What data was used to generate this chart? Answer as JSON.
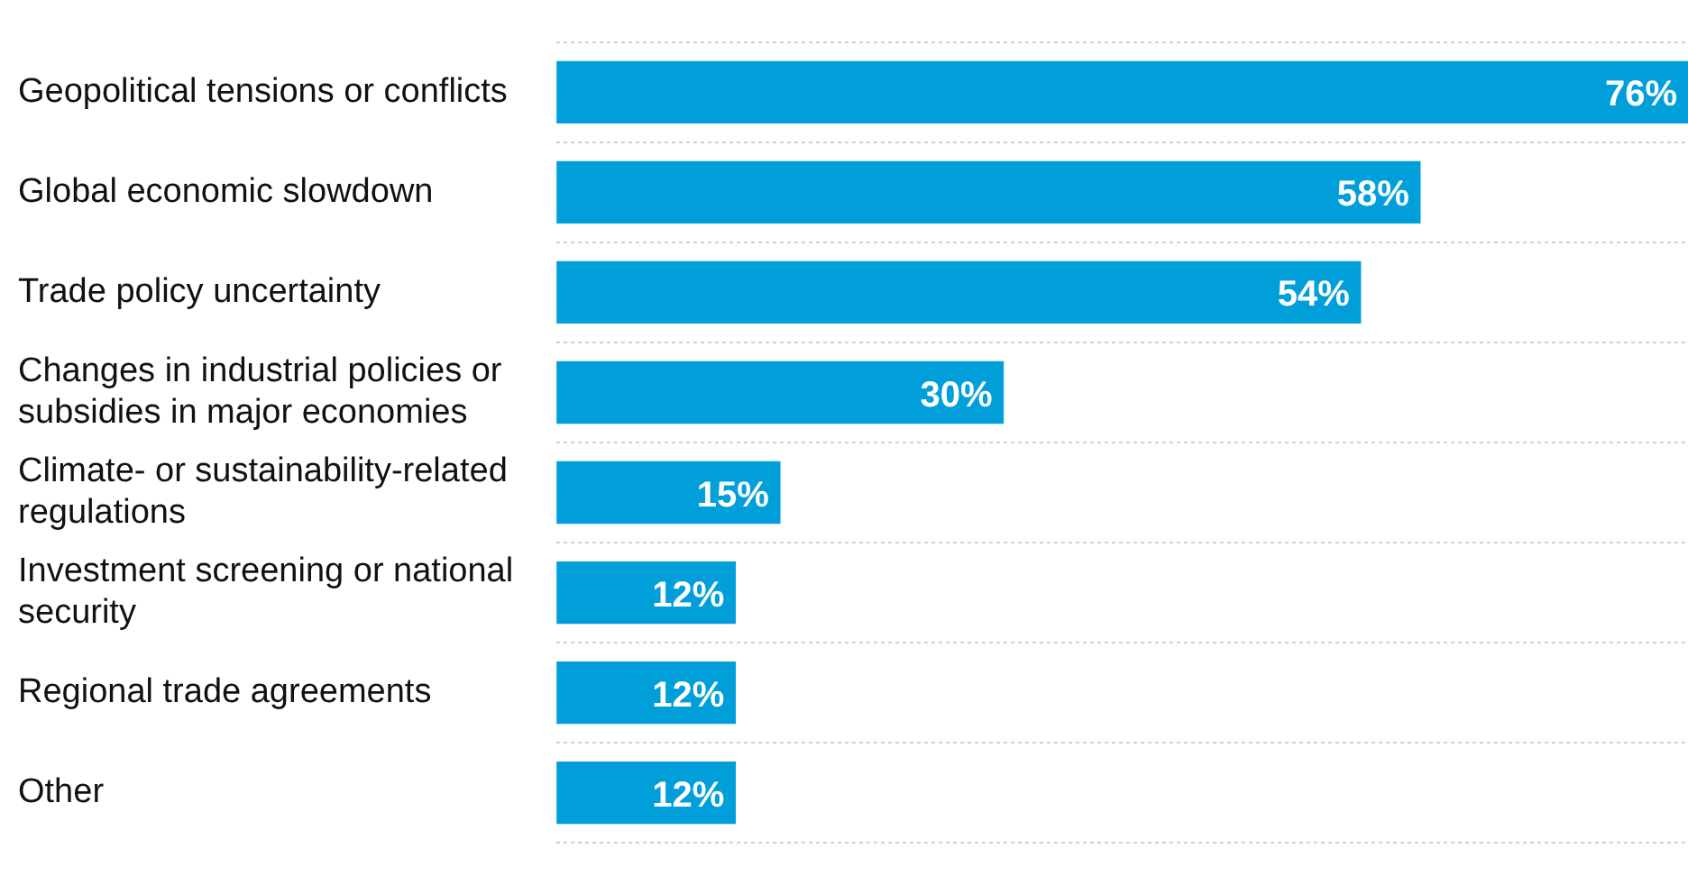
{
  "chart_data": {
    "type": "bar",
    "orientation": "horizontal",
    "data_labels": true,
    "grid": "y",
    "legend": false,
    "categories": [
      "Geopolitical tensions or conflicts",
      "Global economic slowdown",
      "Trade policy uncertainty",
      "Changes in industrial policies or subsidies in major economies",
      "Climate- or sustainability-related regulations",
      "Investment screening or national security",
      "Regional trade agreements",
      "Other"
    ],
    "values": [
      76,
      58,
      54,
      30,
      15,
      12,
      12,
      12
    ],
    "value_labels": [
      "76%",
      "58%",
      "54%",
      "30%",
      "15%",
      "12%",
      "12%",
      "12%"
    ],
    "color": "#019fda"
  }
}
